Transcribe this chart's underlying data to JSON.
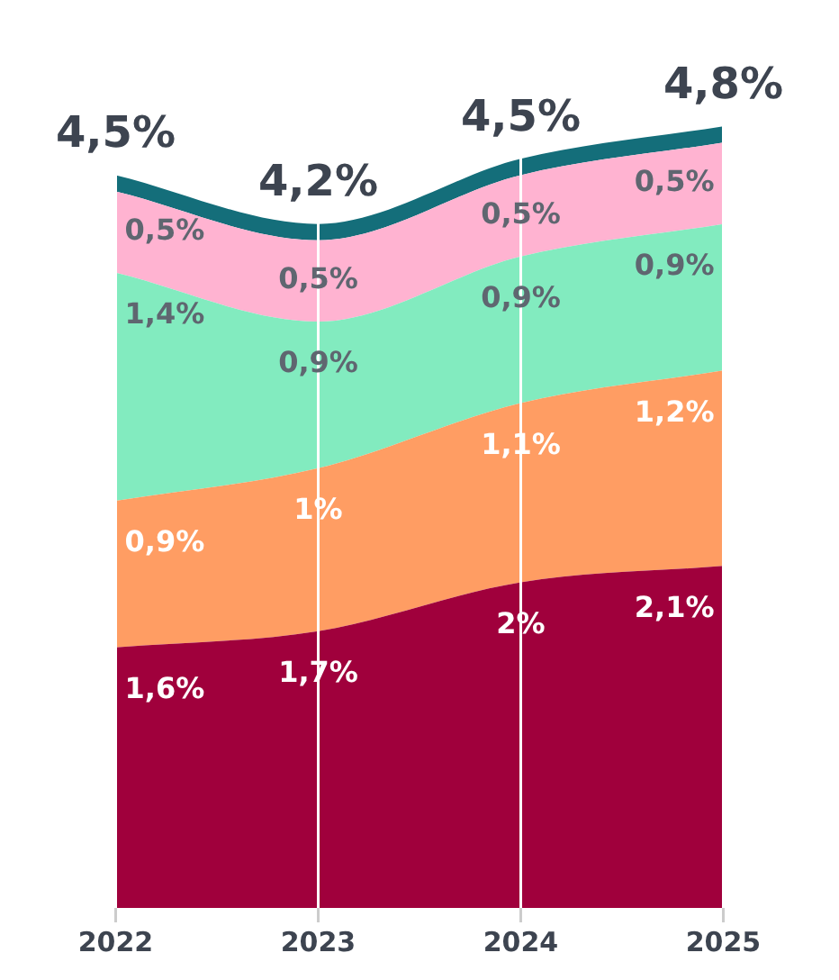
{
  "chart_data": {
    "type": "area",
    "stacked": true,
    "categories": [
      "2022",
      "2023",
      "2024",
      "2025"
    ],
    "series": [
      {
        "color": "#a0003c",
        "values": [
          1.6,
          1.7,
          2,
          2.1
        ],
        "value_labels": [
          "1,6%",
          "1,7%",
          "2%",
          "2,1%"
        ]
      },
      {
        "color": "#ff9d63",
        "values": [
          0.9,
          1,
          1.1,
          1.2
        ],
        "value_labels": [
          "0,9%",
          "1%",
          "1,1%",
          "1,2%"
        ]
      },
      {
        "color": "#82ebbf",
        "values": [
          1.4,
          0.9,
          0.9,
          0.9
        ],
        "value_labels": [
          "1,4%",
          "0,9%",
          "0,9%",
          "0,9%"
        ]
      },
      {
        "color": "#ffb3d1",
        "values": [
          0.5,
          0.5,
          0.5,
          0.5
        ],
        "value_labels": [
          "0,5%",
          "0,5%",
          "0,5%",
          "0,5%"
        ]
      },
      {
        "color": "#146e7a",
        "values": [
          0.1,
          0.1,
          0.1,
          0.1
        ],
        "value_labels": [
          null,
          null,
          null,
          null
        ]
      }
    ],
    "totals": [
      "4,5%",
      "4,2%",
      "4,5%",
      "4,8%"
    ],
    "grid": "x",
    "legend": false,
    "tick_labels": "x"
  }
}
